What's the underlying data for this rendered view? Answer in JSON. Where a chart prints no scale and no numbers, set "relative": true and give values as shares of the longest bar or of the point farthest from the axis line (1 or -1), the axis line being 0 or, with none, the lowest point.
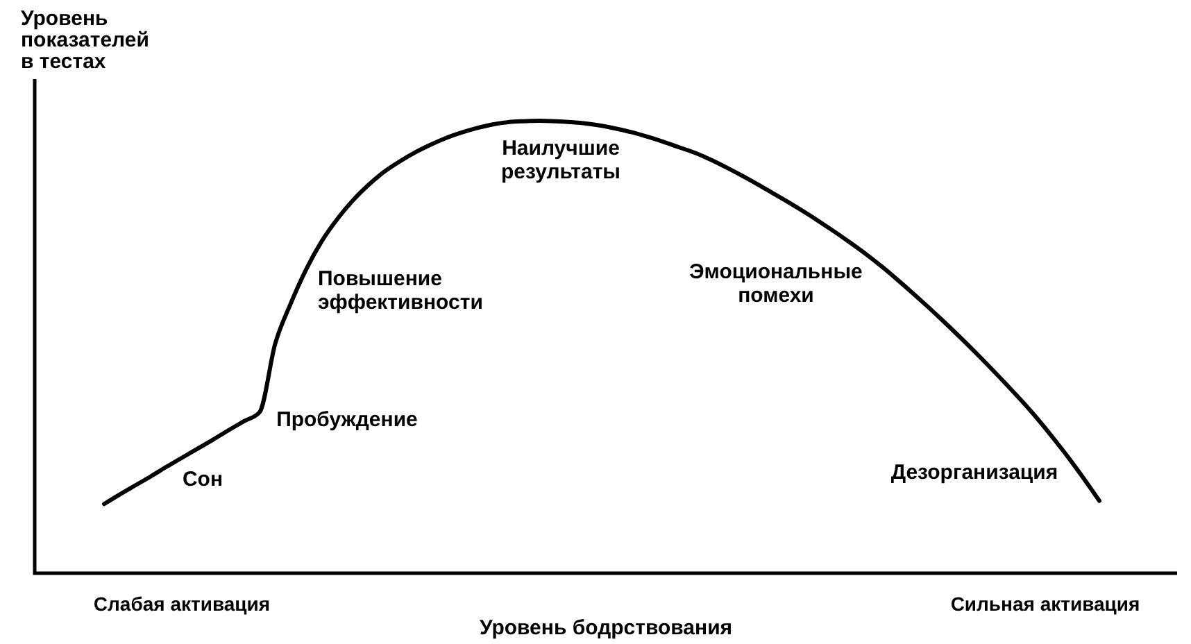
{
  "chart_data": {
    "type": "line",
    "relative": true,
    "xlabel": "Уровень бодрствования",
    "ylabel": "Уровень\nпоказателей\nв тестах",
    "categories": [
      null,
      null,
      null,
      null,
      null,
      null,
      null,
      null,
      null,
      null,
      null,
      null,
      null,
      null,
      null,
      null,
      null,
      null,
      null,
      null,
      null,
      null,
      null,
      null,
      null,
      null,
      null,
      null,
      null,
      null,
      null,
      null,
      null,
      null,
      null,
      null,
      null,
      null,
      null,
      null,
      null,
      null,
      null,
      null,
      null,
      null,
      null,
      null,
      null,
      null,
      null,
      null,
      null,
      null,
      null,
      null,
      null,
      null,
      null,
      null,
      null,
      null,
      null,
      null,
      null
    ],
    "series": [
      {
        "color": "#000000",
        "values": [
          0.153,
          0.174,
          0.194,
          0.214,
          0.235,
          0.255,
          0.275,
          0.295,
          0.316,
          0.336,
          0.356,
          0.507,
          0.596,
          0.672,
          0.734,
          0.783,
          0.824,
          0.858,
          0.887,
          0.91,
          0.93,
          0.947,
          0.962,
          0.974,
          0.984,
          0.992,
          0.997,
          0.999,
          1,
          0.999,
          0.997,
          0.994,
          0.989,
          0.982,
          0.974,
          0.964,
          0.953,
          0.941,
          0.929,
          0.914,
          0.897,
          0.879,
          0.86,
          0.84,
          0.82,
          0.799,
          0.777,
          0.754,
          0.73,
          0.705,
          0.678,
          0.649,
          0.619,
          0.588,
          0.556,
          0.523,
          0.489,
          0.454,
          0.418,
          0.381,
          0.342,
          0.3,
          0.256,
          0.209,
          0.16
        ]
      }
    ],
    "annotations": [
      "Сон",
      "Пробуждение",
      "Повышение\nэффективности",
      "Наилучшие\nрезультаты",
      "Эмоциональные\nпомехи",
      "Дезорганизация",
      "Слабая активация",
      "Сильная активация"
    ]
  }
}
